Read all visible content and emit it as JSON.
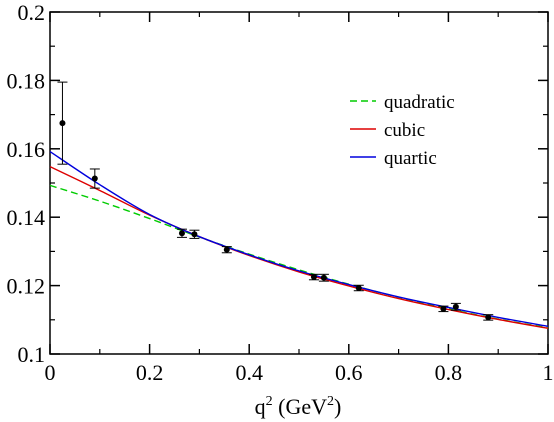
{
  "chart_data": {
    "type": "scatter",
    "xlabel": {
      "base": "q",
      "sup1": "2",
      "mid": " (GeV",
      "sup2": "2",
      "end": ")"
    },
    "ylabel": "",
    "xlim": [
      0,
      1
    ],
    "ylim": [
      0.1,
      0.2
    ],
    "x_ticks": [
      0,
      0.2,
      0.4,
      0.6,
      0.8,
      1
    ],
    "x_tick_labels": [
      "0",
      "0.2",
      "0.4",
      "0.6",
      "0.8",
      "1"
    ],
    "y_ticks": [
      0.1,
      0.12,
      0.14,
      0.16,
      0.18,
      0.2
    ],
    "y_tick_labels": [
      "0.1",
      "0.12",
      "0.14",
      "0.16",
      "0.18",
      "0.2"
    ],
    "grid": false,
    "legend_position": "top-right",
    "points": {
      "x": [
        0.025,
        0.09,
        0.265,
        0.29,
        0.355,
        0.53,
        0.55,
        0.62,
        0.79,
        0.815,
        0.88
      ],
      "y": [
        0.1675,
        0.1513,
        0.1353,
        0.135,
        0.1305,
        0.1225,
        0.1223,
        0.1193,
        0.1132,
        0.1138,
        0.1107
      ],
      "yerr": [
        0.012,
        0.0028,
        0.0012,
        0.0012,
        0.0009,
        0.0008,
        0.001,
        0.0008,
        0.0008,
        0.001,
        0.0008
      ]
    },
    "series": [
      {
        "name": "quadratic",
        "color": "#00cc00",
        "style": "dashed",
        "x": [
          0,
          0.1,
          0.2,
          0.3,
          0.4,
          0.5,
          0.6,
          0.7,
          0.8,
          0.9,
          1.0
        ],
        "y": [
          0.1493,
          0.1447,
          0.1396,
          0.1342,
          0.1292,
          0.1246,
          0.1204,
          0.1166,
          0.1132,
          0.1102,
          0.1077
        ]
      },
      {
        "name": "cubic",
        "color": "#dd0000",
        "style": "solid",
        "x": [
          0,
          0.1,
          0.2,
          0.3,
          0.4,
          0.5,
          0.6,
          0.7,
          0.8,
          0.9,
          1.0
        ],
        "y": [
          0.1548,
          0.1478,
          0.1406,
          0.1343,
          0.1288,
          0.124,
          0.1199,
          0.1162,
          0.113,
          0.1101,
          0.1075
        ]
      },
      {
        "name": "quartic",
        "color": "#0000dd",
        "style": "solid",
        "x": [
          0,
          0.1,
          0.2,
          0.3,
          0.4,
          0.5,
          0.6,
          0.7,
          0.8,
          0.9,
          1.0
        ],
        "y": [
          0.1592,
          0.1495,
          0.1408,
          0.1343,
          0.129,
          0.1243,
          0.1203,
          0.1167,
          0.1136,
          0.1107,
          0.1081
        ]
      }
    ]
  }
}
